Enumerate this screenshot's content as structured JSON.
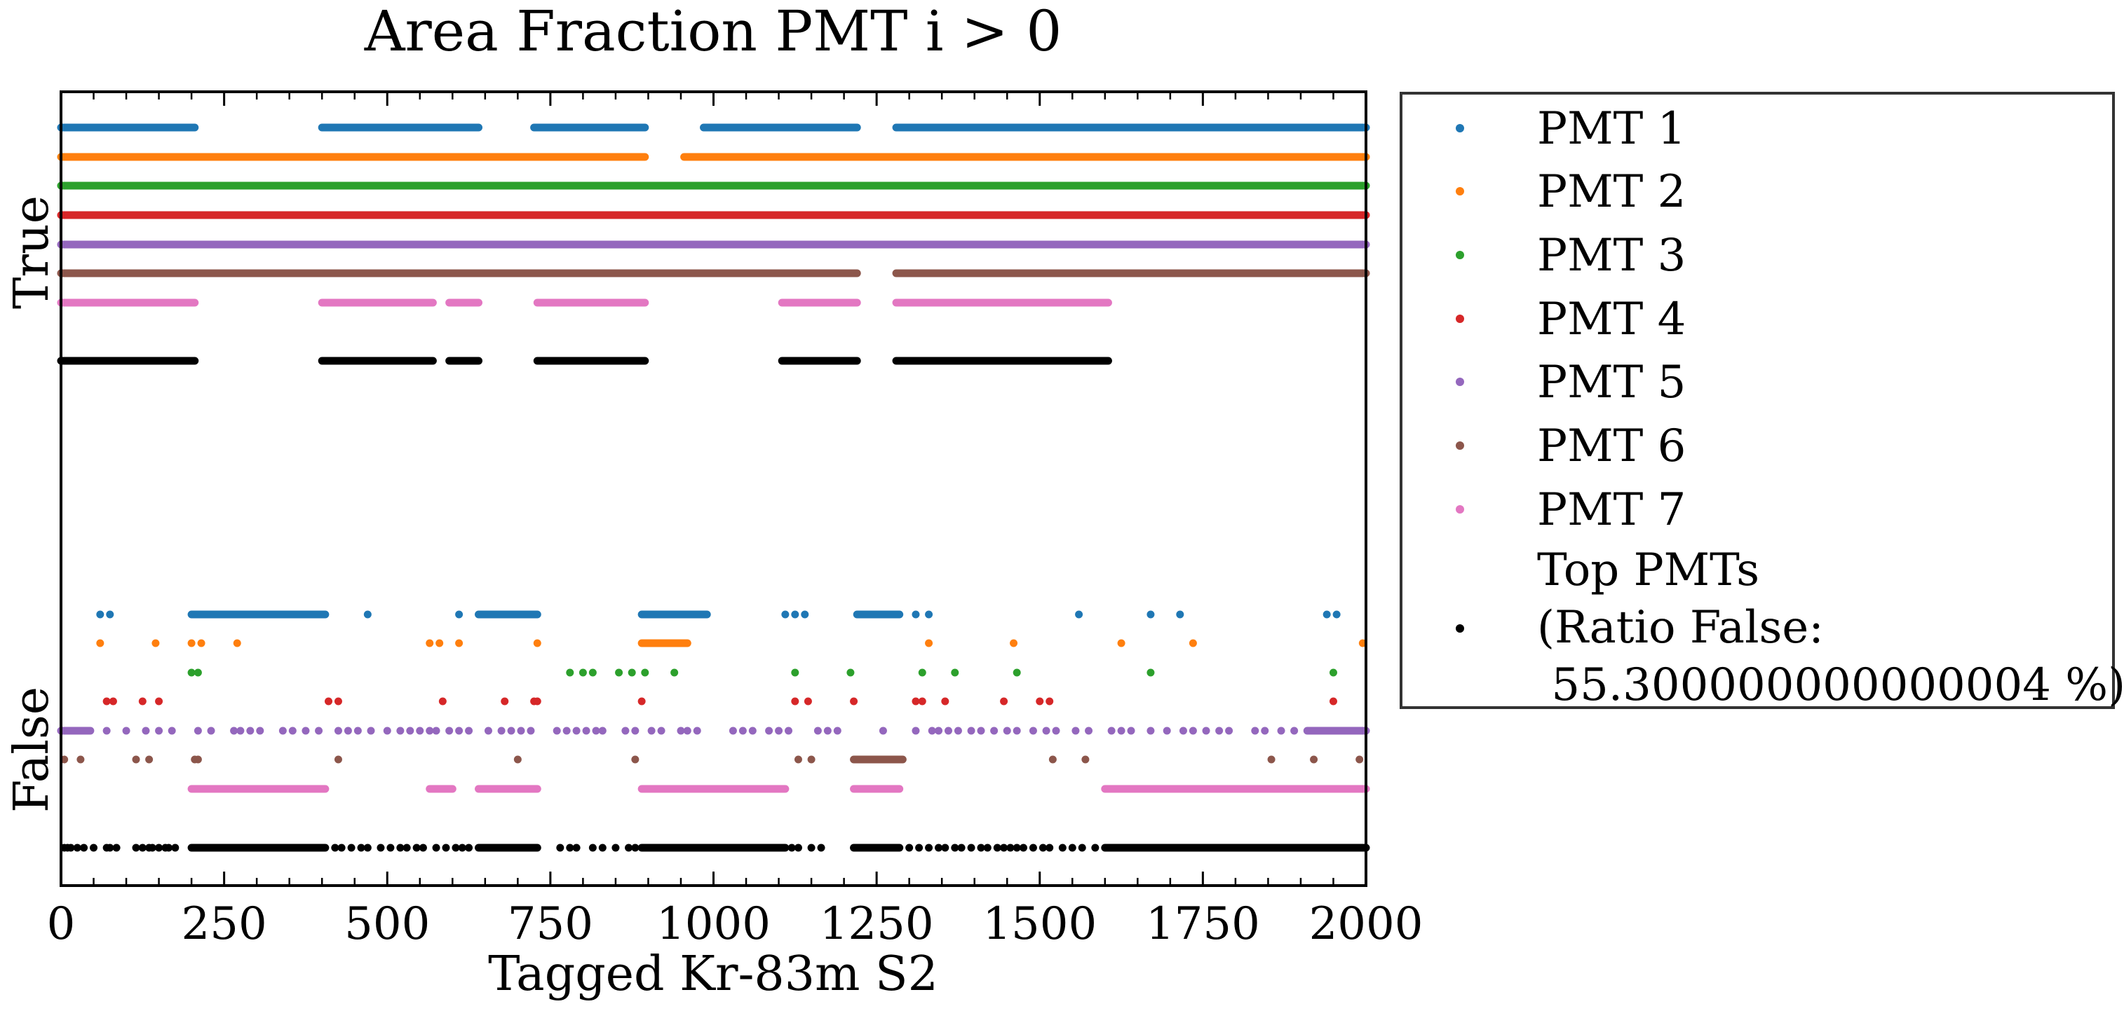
{
  "chart_data": {
    "type": "scatter",
    "title": "Area Fraction PMT i > 0",
    "xlabel": "Tagged Kr-83m S2",
    "ylabel": "",
    "xlim": [
      0,
      2000
    ],
    "ylim": [
      0,
      1
    ],
    "x_ticks": [
      0,
      250,
      500,
      750,
      1000,
      1250,
      1500,
      1750,
      2000
    ],
    "x_tick_labels": [
      "0",
      "250",
      "500",
      "750",
      "1000",
      "1250",
      "1500",
      "1750",
      "2000"
    ],
    "y_category_labels": [
      "False",
      "True"
    ],
    "grid": false,
    "legend_position": "outside-right",
    "series": [
      {
        "name": "PMT 1",
        "color": "#1f77b4",
        "true_ranges": [
          [
            0,
            205
          ],
          [
            400,
            640
          ],
          [
            725,
            895
          ],
          [
            985,
            1220
          ],
          [
            1280,
            2000
          ]
        ],
        "false_ranges": [
          [
            200,
            405
          ],
          [
            640,
            730
          ],
          [
            890,
            990
          ],
          [
            1220,
            1285
          ]
        ],
        "false_points": [
          60,
          75,
          470,
          610,
          1110,
          1125,
          1140,
          1310,
          1330,
          1560,
          1670,
          1715,
          1940,
          1955
        ]
      },
      {
        "name": "PMT 2",
        "color": "#ff7f0e",
        "true_ranges": [
          [
            0,
            895
          ],
          [
            955,
            2000
          ]
        ],
        "false_ranges": [
          [
            890,
            960
          ]
        ],
        "false_points": [
          60,
          145,
          200,
          215,
          270,
          565,
          580,
          610,
          730,
          1330,
          1460,
          1625,
          1735,
          1995
        ]
      },
      {
        "name": "PMT 3",
        "color": "#2ca02c",
        "true_ranges": [
          [
            0,
            2000
          ]
        ],
        "false_ranges": [],
        "false_points": [
          200,
          210,
          780,
          800,
          815,
          855,
          875,
          895,
          940,
          1125,
          1210,
          1320,
          1370,
          1465,
          1670,
          1950
        ]
      },
      {
        "name": "PMT 4",
        "color": "#d62728",
        "true_ranges": [
          [
            0,
            2000
          ]
        ],
        "false_ranges": [],
        "false_points": [
          70,
          80,
          125,
          150,
          410,
          425,
          585,
          680,
          725,
          730,
          890,
          1125,
          1145,
          1215,
          1310,
          1320,
          1355,
          1445,
          1500,
          1515,
          1950
        ]
      },
      {
        "name": "PMT 5",
        "color": "#9467bd",
        "true_ranges": [
          [
            0,
            2000
          ]
        ],
        "false_ranges": [
          [
            0,
            45
          ],
          [
            1910,
            2000
          ]
        ],
        "false_points": [
          70,
          100,
          130,
          150,
          170,
          210,
          230,
          265,
          275,
          290,
          305,
          340,
          355,
          375,
          395,
          425,
          440,
          455,
          475,
          500,
          520,
          535,
          550,
          565,
          575,
          595,
          610,
          625,
          655,
          675,
          690,
          705,
          720,
          760,
          775,
          790,
          805,
          820,
          830,
          865,
          880,
          905,
          920,
          950,
          960,
          975,
          1030,
          1045,
          1060,
          1085,
          1100,
          1115,
          1160,
          1175,
          1190,
          1260,
          1310,
          1335,
          1345,
          1360,
          1375,
          1395,
          1410,
          1430,
          1450,
          1465,
          1490,
          1510,
          1525,
          1555,
          1575,
          1610,
          1625,
          1640,
          1670,
          1695,
          1720,
          1735,
          1755,
          1775,
          1790,
          1830,
          1845,
          1870,
          1890
        ]
      },
      {
        "name": "PMT 6",
        "color": "#8c564b",
        "true_ranges": [
          [
            0,
            1220
          ],
          [
            1280,
            2000
          ]
        ],
        "false_ranges": [
          [
            1215,
            1290
          ]
        ],
        "false_points": [
          5,
          30,
          115,
          135,
          205,
          210,
          425,
          700,
          880,
          1130,
          1150,
          1520,
          1570,
          1855,
          1920,
          1990
        ]
      },
      {
        "name": "PMT 7",
        "color": "#e377c2",
        "true_ranges": [
          [
            0,
            205
          ],
          [
            400,
            570
          ],
          [
            595,
            640
          ],
          [
            730,
            895
          ],
          [
            1105,
            1220
          ],
          [
            1280,
            1605
          ]
        ],
        "false_ranges": [
          [
            200,
            405
          ],
          [
            565,
            600
          ],
          [
            640,
            730
          ],
          [
            890,
            1110
          ],
          [
            1215,
            1285
          ],
          [
            1600,
            2000
          ]
        ],
        "false_points": []
      },
      {
        "name": "Top PMTs\n(Ratio False:\n 55.300000000000004 %)",
        "color": "#000000",
        "true_ranges": [
          [
            0,
            205
          ],
          [
            400,
            570
          ],
          [
            595,
            640
          ],
          [
            730,
            895
          ],
          [
            1105,
            1220
          ],
          [
            1280,
            1605
          ]
        ],
        "false_ranges": [
          [
            200,
            405
          ],
          [
            640,
            730
          ],
          [
            890,
            1110
          ],
          [
            1215,
            1285
          ],
          [
            1600,
            2000
          ]
        ],
        "false_points": [
          5,
          10,
          15,
          25,
          35,
          50,
          70,
          75,
          85,
          115,
          125,
          135,
          140,
          150,
          160,
          165,
          175,
          420,
          430,
          445,
          460,
          470,
          490,
          505,
          520,
          530,
          545,
          555,
          575,
          590,
          605,
          615,
          625,
          765,
          780,
          790,
          815,
          830,
          850,
          870,
          880,
          1120,
          1130,
          1150,
          1165,
          1300,
          1315,
          1330,
          1345,
          1355,
          1370,
          1380,
          1395,
          1410,
          1420,
          1435,
          1445,
          1455,
          1465,
          1475,
          1490,
          1505,
          1515,
          1535,
          1550,
          1565,
          1585
        ]
      }
    ]
  }
}
